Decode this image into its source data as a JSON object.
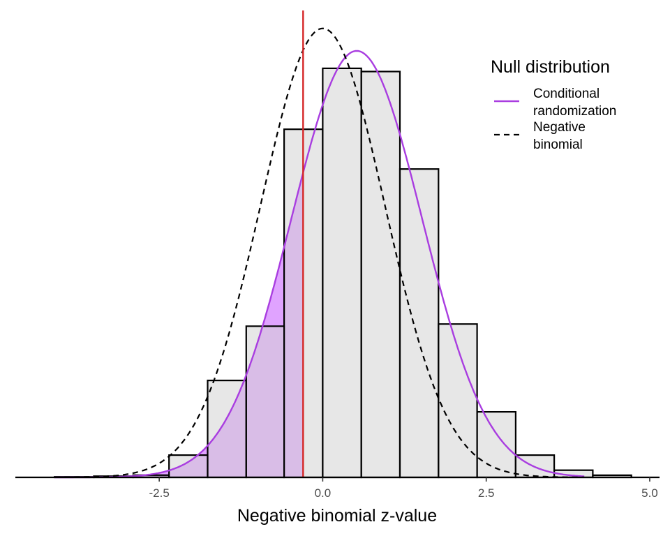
{
  "chart_data": {
    "type": "bar",
    "xlabel": "Negative binomial z-value",
    "ylabel": "",
    "title": "",
    "xlim": [
      -4.7,
      5.15
    ],
    "ylim": [
      0,
      0.44
    ],
    "x_ticks": [
      -2.5,
      0.0,
      2.5,
      5.0
    ],
    "x_tick_labels": [
      "-2.5",
      "0.0",
      "2.5",
      "5.0"
    ],
    "observed_z": -0.3,
    "histogram": {
      "bin_edges": [
        -4.1,
        -3.5,
        -2.9,
        -2.35,
        -1.76,
        -1.17,
        -0.59,
        0.0,
        0.59,
        1.18,
        1.77,
        2.36,
        2.95,
        3.54,
        4.13,
        4.72
      ],
      "density": [
        0.0005,
        0.0011,
        0.0021,
        0.0208,
        0.0907,
        0.1414,
        0.3256,
        0.3826,
        0.3796,
        0.2884,
        0.1434,
        0.0613,
        0.0208,
        0.0067,
        0.002
      ],
      "fill": "#d3d3d3",
      "outline": "#000000"
    },
    "series": [
      {
        "name": "Conditional randomization",
        "distribution": "normal",
        "mean": 0.52,
        "sd": 1.0,
        "color": "#a93de0",
        "linestyle": "solid",
        "x_range": [
          -4.1,
          4.0
        ]
      },
      {
        "name": "Negative binomial",
        "distribution": "normal",
        "mean": 0.0,
        "sd": 0.95,
        "color": "#000000",
        "linestyle": "dashed",
        "x_range": [
          -4.1,
          4.0
        ]
      }
    ],
    "shaded_tail": {
      "from": -4.1,
      "to": -0.3,
      "fill": "#cc66ff",
      "opacity": 0.6
    },
    "legend": {
      "title": "Null distribution",
      "position": "top-right",
      "entries": [
        "Conditional\nrandomization",
        "Negative\nbinomial"
      ]
    },
    "grid": false,
    "colors": {
      "observed_line": "#d62728",
      "axis": "#000000"
    }
  }
}
